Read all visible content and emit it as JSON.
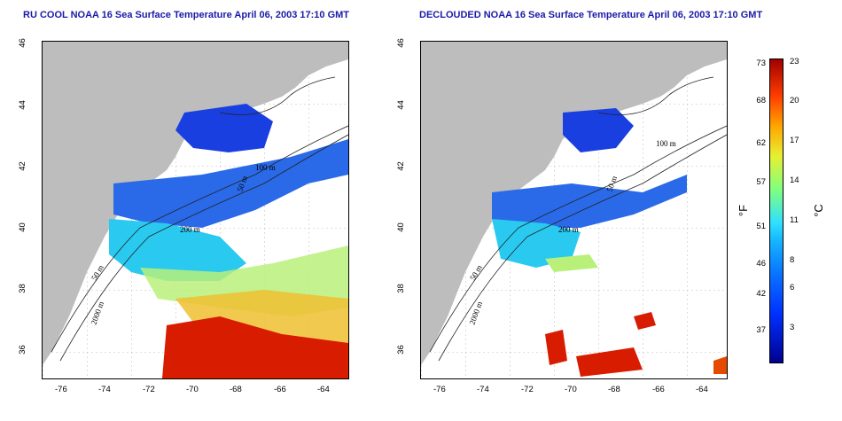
{
  "left_panel": {
    "title": "RU COOL NOAA 16 Sea Surface Temperature April 06, 2003 17:10 GMT"
  },
  "right_panel": {
    "title": "DECLOUDED NOAA 16 Sea Surface Temperature April 06, 2003 17:10 GMT"
  },
  "map": {
    "lat_ticks": [
      "46",
      "44",
      "42",
      "40",
      "38",
      "36"
    ],
    "lon_ticks": [
      "-76",
      "-74",
      "-72",
      "-70",
      "-68",
      "-66",
      "-64"
    ],
    "contour_labels": [
      "100 m",
      "50 m",
      "200 m",
      "50 m",
      "2000 m"
    ],
    "colors": {
      "land": "#bdbdbd",
      "cold": "#1a3fe0",
      "mid": "#29c9f0",
      "warm": "#f0e030",
      "hot": "#d81c00"
    }
  },
  "colorbar": {
    "fahrenheit": [
      "73",
      "68",
      "62",
      "57",
      "51",
      "46",
      "42",
      "37"
    ],
    "celsius": [
      "23",
      "20",
      "17",
      "14",
      "11",
      "8",
      "6",
      "3"
    ],
    "unit_f": "°F",
    "unit_c": "°C"
  }
}
